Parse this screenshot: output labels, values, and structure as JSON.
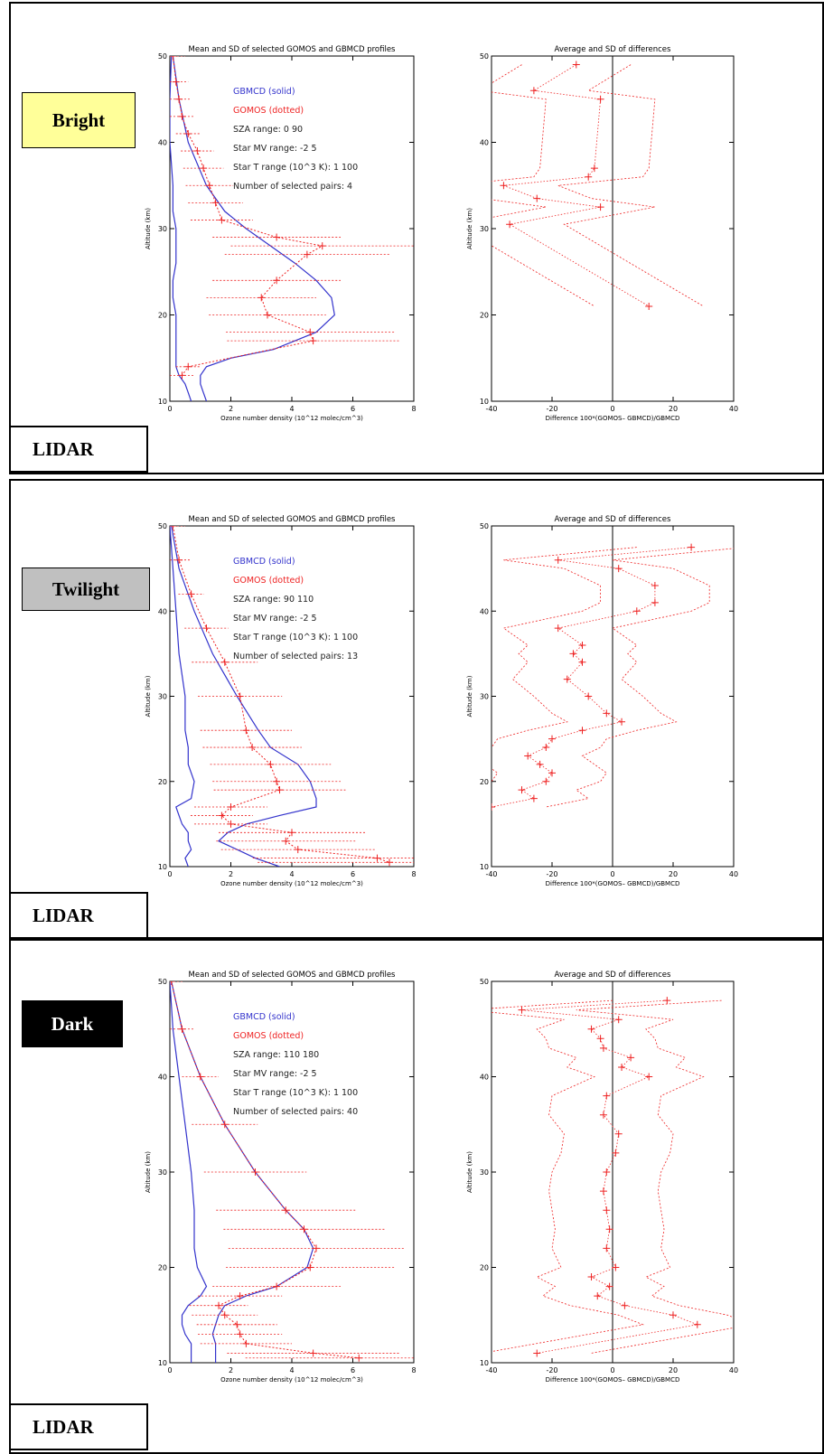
{
  "panels": [
    {
      "condition": "Bright",
      "condition_style": {
        "bg": "#ffff99",
        "fg": "#000000"
      },
      "lidar_label": "LIDAR",
      "legend": {
        "solid": "GBMCD  (solid)",
        "dotted": "GOMOS  (dotted)",
        "sza": "SZA range:     0   90",
        "star_mv": "Star MV range:    -2    5",
        "star_t": "Star T range (10^3 K):   1  100",
        "pairs": "Number of selected pairs:    4"
      }
    },
    {
      "condition": "Twilight",
      "condition_style": {
        "bg": "#c0c0c0",
        "fg": "#000000"
      },
      "lidar_label": "LIDAR",
      "legend": {
        "solid": "GBMCD  (solid)",
        "dotted": "GOMOS  (dotted)",
        "sza": "SZA range:    90   110",
        "star_mv": "Star MV range:    -2    5",
        "star_t": "Star T range (10^3 K):   1  100",
        "pairs": "Number of selected pairs:   13"
      }
    },
    {
      "condition": "Dark",
      "condition_style": {
        "bg": "#000000",
        "fg": "#ffffff"
      },
      "lidar_label": "LIDAR",
      "legend": {
        "solid": "GBMCD  (solid)",
        "dotted": "GOMOS  (dotted)",
        "sza": "SZA range:    110   180",
        "star_mv": "Star MV range:    -2    5",
        "star_t": "Star T range (10^3 K):   1  100",
        "pairs": "Number of selected pairs:   40"
      }
    }
  ],
  "colors": {
    "gbmcd": "#3333cc",
    "gomos": "#ee2222",
    "axis": "#000000"
  },
  "chart_data": [
    {
      "type": "line",
      "panel": "Bright",
      "title": "Mean and SD of selected GOMOS and GBMCD profiles",
      "xlabel": "Ozone number density (10^12 molec/cm^3)",
      "ylabel": "Altitude (km)",
      "xlim": [
        0,
        8
      ],
      "ylim": [
        10,
        50
      ],
      "xticks": [
        0,
        2,
        4,
        6,
        8
      ],
      "yticks": [
        10,
        20,
        30,
        40,
        50
      ],
      "series": [
        {
          "name": "GBMCD",
          "style": "solid",
          "y": [
            50,
            45,
            40,
            35,
            32,
            30,
            28,
            26,
            24,
            22,
            20,
            18,
            16,
            15,
            14,
            13,
            12,
            11,
            10
          ],
          "x_mean": [
            0.1,
            0.3,
            0.6,
            1.2,
            1.8,
            2.5,
            3.3,
            4.1,
            4.8,
            5.3,
            5.4,
            4.8,
            3.4,
            2.0,
            1.2,
            1.0,
            1.0,
            1.1,
            1.2
          ],
          "x_low": [
            0.05,
            0.0,
            0.0,
            0.1,
            0.1,
            0.2,
            0.2,
            0.2,
            0.1,
            0.1,
            0.2,
            0.2,
            0.2,
            0.2,
            0.2,
            0.3,
            0.5,
            0.6,
            0.7
          ]
        },
        {
          "name": "GOMOS",
          "style": "dotted",
          "y": [
            50,
            47,
            45,
            43,
            41,
            39,
            37,
            35,
            33,
            31,
            29,
            28,
            27,
            24,
            22,
            20,
            18,
            17,
            14,
            13
          ],
          "x_mean": [
            0.1,
            0.2,
            0.3,
            0.4,
            0.6,
            0.9,
            1.1,
            1.3,
            1.5,
            1.7,
            3.5,
            5.0,
            4.5,
            3.5,
            3.0,
            3.2,
            4.6,
            4.7,
            0.6,
            0.4
          ]
        }
      ]
    },
    {
      "type": "line",
      "panel": "Bright",
      "title": "Average and SD of differences",
      "xlabel": "Difference 100*(GOMOS– GBMCD)/GBMCD",
      "ylabel": "Altitude (km)",
      "xlim": [
        -40,
        40
      ],
      "ylim": [
        10,
        50
      ],
      "xticks": [
        -40,
        -20,
        0,
        20,
        40
      ],
      "yticks": [
        10,
        20,
        30,
        40,
        50
      ],
      "series": [
        {
          "name": "mean difference",
          "style": "dotted",
          "y": [
            49,
            46,
            45,
            37,
            36,
            35,
            33.5,
            32.5,
            30.5,
            21
          ],
          "x": [
            -12,
            -26,
            -4,
            -6,
            -8,
            -36,
            -25,
            -4,
            -34,
            12
          ]
        }
      ]
    },
    {
      "type": "line",
      "panel": "Twilight",
      "title": "Mean and SD of selected GOMOS and GBMCD profiles",
      "xlabel": "Ozone number density (10^12 molec/cm^3)",
      "ylabel": "Altitude (km)",
      "xlim": [
        0,
        8
      ],
      "ylim": [
        10,
        50
      ],
      "xticks": [
        0,
        2,
        4,
        6,
        8
      ],
      "yticks": [
        10,
        20,
        30,
        40,
        50
      ],
      "series": [
        {
          "name": "GBMCD",
          "style": "solid",
          "y": [
            50,
            45,
            40,
            35,
            30,
            26,
            24,
            22,
            20,
            18,
            17,
            16,
            15,
            14,
            13,
            12,
            11,
            10
          ],
          "x_mean": [
            0.05,
            0.3,
            0.8,
            1.4,
            2.2,
            2.9,
            3.3,
            4.2,
            4.6,
            4.8,
            4.8,
            3.6,
            2.5,
            1.9,
            1.6,
            2.2,
            2.8,
            3.6
          ],
          "x_low": [
            0.0,
            0.1,
            0.2,
            0.3,
            0.5,
            0.5,
            0.6,
            0.6,
            0.8,
            0.7,
            0.2,
            0.3,
            0.4,
            0.6,
            0.6,
            0.7,
            0.5,
            0.6
          ]
        },
        {
          "name": "GOMOS",
          "style": "dotted",
          "y": [
            50,
            46,
            42,
            38,
            34,
            30,
            26,
            24,
            22,
            20,
            19,
            17,
            16,
            15,
            14,
            13,
            12,
            11,
            10.5
          ],
          "x_mean": [
            0.1,
            0.3,
            0.7,
            1.2,
            1.8,
            2.3,
            2.5,
            2.7,
            3.3,
            3.5,
            3.6,
            2.0,
            1.7,
            2.0,
            4.0,
            3.8,
            4.2,
            6.8,
            7.2
          ]
        }
      ]
    },
    {
      "type": "line",
      "panel": "Twilight",
      "title": "Average and SD of differences",
      "xlabel": "Difference 100*(GOMOS– GBMCD)/GBMCD",
      "ylabel": "Altitude (km)",
      "xlim": [
        -40,
        40
      ],
      "ylim": [
        10,
        50
      ],
      "xticks": [
        -40,
        -20,
        0,
        20,
        40
      ],
      "yticks": [
        10,
        20,
        30,
        40,
        50
      ],
      "series": [
        {
          "name": "mean difference",
          "style": "dotted",
          "y": [
            47.5,
            46,
            45,
            43,
            41,
            40,
            38,
            36,
            35,
            34,
            32,
            30,
            28,
            27,
            26,
            25,
            24,
            23,
            22,
            21,
            20,
            19,
            18,
            17
          ],
          "x": [
            26,
            -18,
            2,
            14,
            14,
            8,
            -18,
            -10,
            -13,
            -10,
            -15,
            -8,
            -2,
            3,
            -10,
            -20,
            -22,
            -28,
            -24,
            -20,
            -22,
            -30,
            -26,
            -40
          ]
        }
      ]
    },
    {
      "type": "line",
      "panel": "Dark",
      "title": "Mean and SD of selected GOMOS and GBMCD profiles",
      "xlabel": "Ozone number density (10^12 molec/cm^3)",
      "ylabel": "Altitude (km)",
      "xlim": [
        0,
        8
      ],
      "ylim": [
        10,
        50
      ],
      "xticks": [
        0,
        2,
        4,
        6,
        8
      ],
      "yticks": [
        10,
        20,
        30,
        40,
        50
      ],
      "series": [
        {
          "name": "GBMCD",
          "style": "solid",
          "y": [
            50,
            45,
            40,
            35,
            30,
            26,
            24,
            22,
            20,
            18,
            17,
            16,
            15,
            14,
            13,
            12,
            11,
            10
          ],
          "x_mean": [
            0.05,
            0.4,
            1.0,
            1.8,
            2.8,
            3.8,
            4.4,
            4.7,
            4.5,
            3.5,
            2.5,
            1.8,
            1.6,
            1.5,
            1.4,
            1.5,
            1.5,
            1.5
          ],
          "x_low": [
            0.0,
            0.1,
            0.3,
            0.5,
            0.7,
            0.8,
            0.8,
            0.8,
            0.9,
            1.2,
            1.0,
            0.6,
            0.4,
            0.4,
            0.5,
            0.7,
            0.7,
            0.7
          ]
        },
        {
          "name": "GOMOS",
          "style": "dotted",
          "y": [
            50,
            45,
            40,
            35,
            30,
            26,
            24,
            22,
            20,
            18,
            17,
            16,
            15,
            14,
            13,
            12,
            11,
            10.5
          ],
          "x_mean": [
            0.05,
            0.4,
            1.0,
            1.8,
            2.8,
            3.8,
            4.4,
            4.8,
            4.6,
            3.5,
            2.3,
            1.6,
            1.8,
            2.2,
            2.3,
            2.5,
            4.7,
            6.2
          ]
        }
      ]
    },
    {
      "type": "line",
      "panel": "Dark",
      "title": "Average and SD of differences",
      "xlabel": "Difference 100*(GOMOS– GBMCD)/GBMCD",
      "ylabel": "Altitude (km)",
      "xlim": [
        -40,
        40
      ],
      "ylim": [
        10,
        50
      ],
      "xticks": [
        -40,
        -20,
        0,
        20,
        40
      ],
      "yticks": [
        10,
        20,
        30,
        40,
        50
      ],
      "series": [
        {
          "name": "mean difference",
          "style": "dotted",
          "y": [
            48,
            47,
            46,
            45,
            44,
            43,
            42,
            41,
            40,
            38,
            36,
            34,
            32,
            30,
            28,
            26,
            24,
            22,
            20,
            19,
            18,
            17,
            16,
            15,
            14,
            11
          ],
          "x": [
            18,
            -30,
            2,
            -7,
            -4,
            -3,
            6,
            3,
            12,
            -2,
            -3,
            2,
            1,
            -2,
            -3,
            -2,
            -1,
            -2,
            1,
            -7,
            -1,
            -5,
            4,
            20,
            28,
            -25
          ]
        }
      ]
    }
  ]
}
